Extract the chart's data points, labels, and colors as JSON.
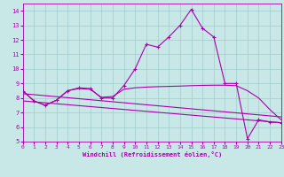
{
  "xlabel": "Windchill (Refroidissement éolien,°C)",
  "background_color": "#c8e8e8",
  "grid_color": "#a0cccc",
  "line_color": "#aa00aa",
  "xlim": [
    0,
    23
  ],
  "ylim": [
    5,
    14.5
  ],
  "xtick_vals": [
    0,
    1,
    2,
    3,
    4,
    5,
    6,
    7,
    8,
    9,
    10,
    11,
    12,
    13,
    14,
    15,
    16,
    17,
    18,
    19,
    20,
    21,
    22,
    23
  ],
  "ytick_vals": [
    5,
    6,
    7,
    8,
    9,
    10,
    11,
    12,
    13,
    14
  ],
  "line1_x": [
    0,
    1,
    2,
    3,
    4,
    5,
    6,
    7,
    8,
    9,
    10,
    11,
    12,
    13,
    14,
    15,
    16,
    17,
    18,
    19,
    20,
    21,
    22,
    23
  ],
  "line1_y": [
    8.5,
    7.8,
    7.5,
    7.85,
    8.5,
    8.7,
    8.65,
    8.0,
    8.0,
    8.85,
    10.0,
    11.7,
    11.5,
    12.2,
    13.0,
    14.1,
    12.8,
    12.2,
    9.0,
    9.0,
    5.2,
    6.5,
    6.35,
    6.3
  ],
  "line2_x": [
    0,
    1,
    2,
    3,
    4,
    5,
    6,
    7,
    8,
    9,
    10,
    11,
    12,
    13,
    14,
    15,
    16,
    17,
    18,
    19,
    20,
    21,
    22,
    23
  ],
  "line2_y": [
    8.5,
    7.8,
    7.5,
    7.85,
    8.5,
    8.65,
    8.6,
    8.05,
    8.1,
    8.6,
    8.7,
    8.75,
    8.78,
    8.8,
    8.82,
    8.85,
    8.87,
    8.88,
    8.88,
    8.85,
    8.5,
    8.0,
    7.2,
    6.5
  ],
  "line3_x": [
    0,
    23
  ],
  "line3_y": [
    8.3,
    6.7
  ],
  "line4_x": [
    0,
    23
  ],
  "line4_y": [
    7.8,
    6.3
  ]
}
